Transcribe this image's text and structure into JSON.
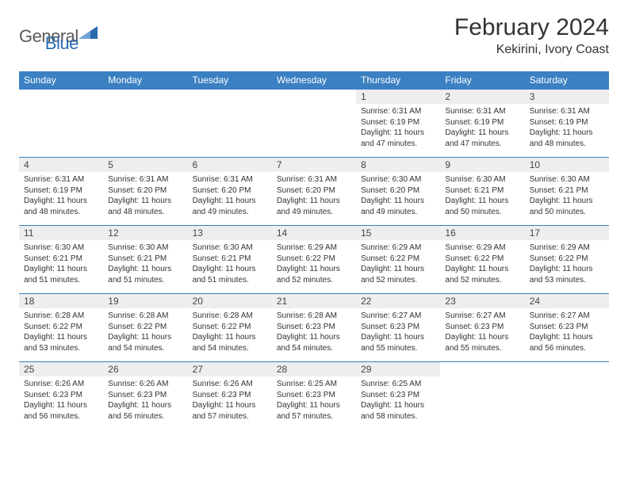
{
  "brand": {
    "part1": "General",
    "part2": "Blue"
  },
  "title": "February 2024",
  "location": "Kekirini, Ivory Coast",
  "colors": {
    "header_bg": "#3b80c2",
    "header_fg": "#ffffff",
    "row_divider": "#3b80c2",
    "daynum_bg": "#eeeeee",
    "text": "#333333",
    "logo_gray": "#5a5a5a",
    "logo_blue": "#2a6bb0",
    "background": "#ffffff"
  },
  "weekdays": [
    "Sunday",
    "Monday",
    "Tuesday",
    "Wednesday",
    "Thursday",
    "Friday",
    "Saturday"
  ],
  "weeks": [
    [
      null,
      null,
      null,
      null,
      {
        "n": "1",
        "sunrise": "6:31 AM",
        "sunset": "6:19 PM",
        "daylight": "11 hours and 47 minutes."
      },
      {
        "n": "2",
        "sunrise": "6:31 AM",
        "sunset": "6:19 PM",
        "daylight": "11 hours and 47 minutes."
      },
      {
        "n": "3",
        "sunrise": "6:31 AM",
        "sunset": "6:19 PM",
        "daylight": "11 hours and 48 minutes."
      }
    ],
    [
      {
        "n": "4",
        "sunrise": "6:31 AM",
        "sunset": "6:19 PM",
        "daylight": "11 hours and 48 minutes."
      },
      {
        "n": "5",
        "sunrise": "6:31 AM",
        "sunset": "6:20 PM",
        "daylight": "11 hours and 48 minutes."
      },
      {
        "n": "6",
        "sunrise": "6:31 AM",
        "sunset": "6:20 PM",
        "daylight": "11 hours and 49 minutes."
      },
      {
        "n": "7",
        "sunrise": "6:31 AM",
        "sunset": "6:20 PM",
        "daylight": "11 hours and 49 minutes."
      },
      {
        "n": "8",
        "sunrise": "6:30 AM",
        "sunset": "6:20 PM",
        "daylight": "11 hours and 49 minutes."
      },
      {
        "n": "9",
        "sunrise": "6:30 AM",
        "sunset": "6:21 PM",
        "daylight": "11 hours and 50 minutes."
      },
      {
        "n": "10",
        "sunrise": "6:30 AM",
        "sunset": "6:21 PM",
        "daylight": "11 hours and 50 minutes."
      }
    ],
    [
      {
        "n": "11",
        "sunrise": "6:30 AM",
        "sunset": "6:21 PM",
        "daylight": "11 hours and 51 minutes."
      },
      {
        "n": "12",
        "sunrise": "6:30 AM",
        "sunset": "6:21 PM",
        "daylight": "11 hours and 51 minutes."
      },
      {
        "n": "13",
        "sunrise": "6:30 AM",
        "sunset": "6:21 PM",
        "daylight": "11 hours and 51 minutes."
      },
      {
        "n": "14",
        "sunrise": "6:29 AM",
        "sunset": "6:22 PM",
        "daylight": "11 hours and 52 minutes."
      },
      {
        "n": "15",
        "sunrise": "6:29 AM",
        "sunset": "6:22 PM",
        "daylight": "11 hours and 52 minutes."
      },
      {
        "n": "16",
        "sunrise": "6:29 AM",
        "sunset": "6:22 PM",
        "daylight": "11 hours and 52 minutes."
      },
      {
        "n": "17",
        "sunrise": "6:29 AM",
        "sunset": "6:22 PM",
        "daylight": "11 hours and 53 minutes."
      }
    ],
    [
      {
        "n": "18",
        "sunrise": "6:28 AM",
        "sunset": "6:22 PM",
        "daylight": "11 hours and 53 minutes."
      },
      {
        "n": "19",
        "sunrise": "6:28 AM",
        "sunset": "6:22 PM",
        "daylight": "11 hours and 54 minutes."
      },
      {
        "n": "20",
        "sunrise": "6:28 AM",
        "sunset": "6:22 PM",
        "daylight": "11 hours and 54 minutes."
      },
      {
        "n": "21",
        "sunrise": "6:28 AM",
        "sunset": "6:23 PM",
        "daylight": "11 hours and 54 minutes."
      },
      {
        "n": "22",
        "sunrise": "6:27 AM",
        "sunset": "6:23 PM",
        "daylight": "11 hours and 55 minutes."
      },
      {
        "n": "23",
        "sunrise": "6:27 AM",
        "sunset": "6:23 PM",
        "daylight": "11 hours and 55 minutes."
      },
      {
        "n": "24",
        "sunrise": "6:27 AM",
        "sunset": "6:23 PM",
        "daylight": "11 hours and 56 minutes."
      }
    ],
    [
      {
        "n": "25",
        "sunrise": "6:26 AM",
        "sunset": "6:23 PM",
        "daylight": "11 hours and 56 minutes."
      },
      {
        "n": "26",
        "sunrise": "6:26 AM",
        "sunset": "6:23 PM",
        "daylight": "11 hours and 56 minutes."
      },
      {
        "n": "27",
        "sunrise": "6:26 AM",
        "sunset": "6:23 PM",
        "daylight": "11 hours and 57 minutes."
      },
      {
        "n": "28",
        "sunrise": "6:25 AM",
        "sunset": "6:23 PM",
        "daylight": "11 hours and 57 minutes."
      },
      {
        "n": "29",
        "sunrise": "6:25 AM",
        "sunset": "6:23 PM",
        "daylight": "11 hours and 58 minutes."
      },
      null,
      null
    ]
  ],
  "labels": {
    "sunrise_prefix": "Sunrise: ",
    "sunset_prefix": "Sunset: ",
    "daylight_prefix": "Daylight: "
  }
}
